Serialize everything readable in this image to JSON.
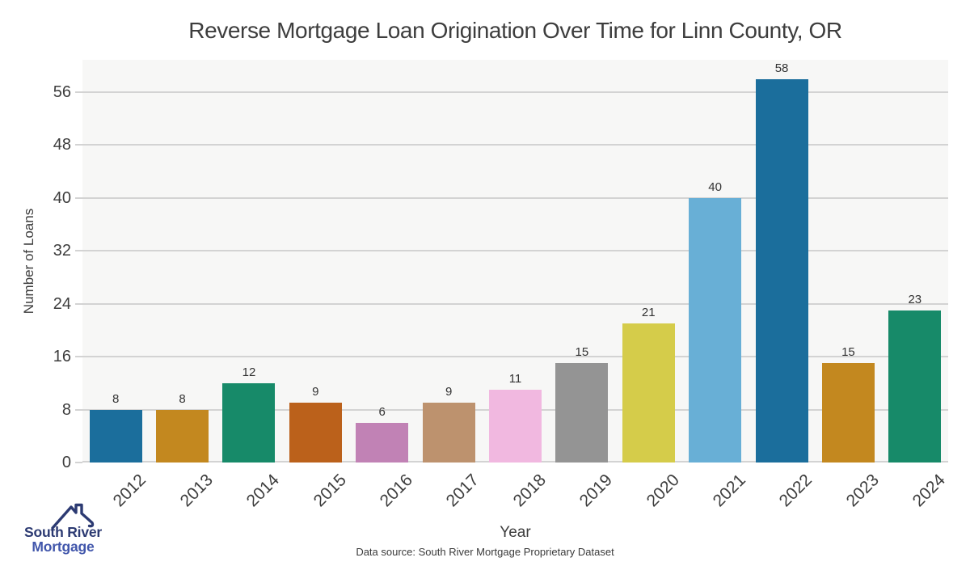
{
  "title": "Reverse Mortgage Loan Origination Over Time for Linn County, OR",
  "y_axis": {
    "label": "Number of Loans",
    "ticks": [
      0,
      8,
      16,
      24,
      32,
      40,
      48,
      56
    ]
  },
  "x_axis": {
    "label": "Year"
  },
  "source_note": "Data source: South River Mortgage Proprietary Dataset",
  "logo": {
    "line1": "South River",
    "line2": "Mortgage",
    "navy": "#2c3a72",
    "blue": "#4156ab"
  },
  "chart_data": {
    "type": "bar",
    "title": "Reverse Mortgage Loan Origination Over Time for Linn County, OR",
    "xlabel": "Year",
    "ylabel": "Number of Loans",
    "categories": [
      "2012",
      "2013",
      "2014",
      "2015",
      "2016",
      "2017",
      "2018",
      "2019",
      "2020",
      "2021",
      "2022",
      "2023",
      "2024"
    ],
    "values": [
      8,
      8,
      12,
      9,
      6,
      9,
      11,
      15,
      21,
      40,
      58,
      15,
      23
    ],
    "bar_labels": [
      "8",
      "8",
      "12",
      "9",
      "6",
      "9",
      "11",
      "15",
      "21",
      "40",
      "58",
      "15",
      "23"
    ],
    "bar_colors": [
      "#1b6e9c",
      "#c3881f",
      "#178a69",
      "#bb611b",
      "#c182b5",
      "#bd926e",
      "#f1b8e0",
      "#949494",
      "#d5cc4a",
      "#68afd6",
      "#1b6e9c",
      "#c3881f",
      "#178a69"
    ],
    "yticks": [
      0,
      8,
      16,
      24,
      32,
      40,
      48,
      56
    ],
    "ylim": [
      0,
      60.9
    ],
    "grid": "horizontal",
    "legend": "none",
    "plot_background": "#f7f7f6",
    "grid_color": "#d3d3d3"
  }
}
